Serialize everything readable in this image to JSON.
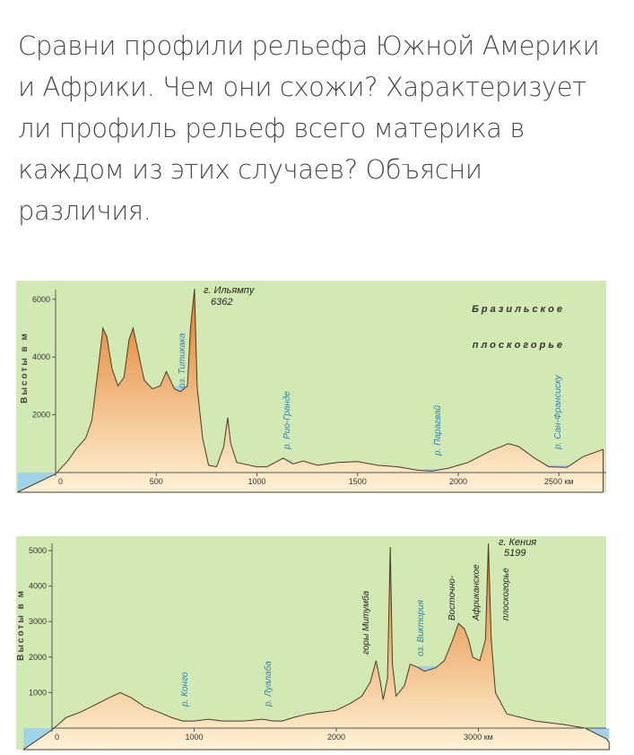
{
  "question": {
    "lines": [
      "Сравни профили рельефа Южной Америки",
      "и Африки. Чем они схожи? Характеризует",
      "ли профиль рельеф всего материка в",
      "каждом из этих случаев? Объясни",
      "различия."
    ]
  },
  "colors": {
    "panel_bg": "#d3e9b4",
    "terrain_top": "#e07a24",
    "terrain_bottom": "#fff3d6",
    "water": "#9fd3ea",
    "axis": "#555555"
  },
  "chart_data": [
    {
      "type": "area",
      "ylabel": "Высоты в м",
      "x_unit": "км",
      "xlim": [
        0,
        2720
      ],
      "ylim": [
        -800,
        6600
      ],
      "x_ticks": [
        0,
        500,
        1000,
        1500,
        2000,
        2500
      ],
      "x_tick_labels": [
        "0",
        "500",
        "1000",
        "1500",
        "2000",
        "2500 км"
      ],
      "y_ticks": [
        2000,
        4000,
        6000
      ],
      "y_tick_labels": [
        "2000",
        "4000",
        "6000"
      ],
      "profile": [
        [
          -190,
          -800
        ],
        [
          0,
          -50
        ],
        [
          60,
          400
        ],
        [
          100,
          800
        ],
        [
          150,
          1200
        ],
        [
          180,
          1800
        ],
        [
          210,
          3500
        ],
        [
          235,
          5000
        ],
        [
          255,
          4700
        ],
        [
          280,
          3600
        ],
        [
          310,
          3000
        ],
        [
          340,
          3300
        ],
        [
          365,
          4600
        ],
        [
          385,
          5000
        ],
        [
          410,
          4200
        ],
        [
          440,
          3200
        ],
        [
          480,
          2900
        ],
        [
          520,
          3000
        ],
        [
          550,
          3500
        ],
        [
          590,
          2900
        ],
        [
          620,
          2800
        ],
        [
          655,
          3000
        ],
        [
          670,
          5000
        ],
        [
          690,
          6362
        ],
        [
          703,
          3000
        ],
        [
          730,
          1200
        ],
        [
          760,
          250
        ],
        [
          800,
          200
        ],
        [
          835,
          900
        ],
        [
          855,
          1900
        ],
        [
          870,
          1000
        ],
        [
          900,
          350
        ],
        [
          1000,
          200
        ],
        [
          1050,
          200
        ],
        [
          1130,
          500
        ],
        [
          1180,
          300
        ],
        [
          1230,
          400
        ],
        [
          1300,
          250
        ],
        [
          1400,
          350
        ],
        [
          1500,
          380
        ],
        [
          1600,
          250
        ],
        [
          1700,
          200
        ],
        [
          1800,
          80
        ],
        [
          1870,
          50
        ],
        [
          1950,
          150
        ],
        [
          2050,
          350
        ],
        [
          2160,
          750
        ],
        [
          2250,
          1000
        ],
        [
          2300,
          900
        ],
        [
          2380,
          500
        ],
        [
          2450,
          200
        ],
        [
          2540,
          180
        ],
        [
          2620,
          550
        ],
        [
          2720,
          800
        ]
      ],
      "water": [
        {
          "x1": -190,
          "x2": 0,
          "level": 0
        },
        {
          "x1": 590,
          "x2": 655,
          "level": 3000
        },
        {
          "x1": 1120,
          "x2": 1175,
          "level": 450
        },
        {
          "x1": 1830,
          "x2": 1930,
          "level": 130
        },
        {
          "x1": 2420,
          "x2": 2560,
          "level": 250
        }
      ],
      "labels": {
        "peak_name": "г. Ильямпу",
        "peak_height": "6362",
        "titicaca": "оз. Титикака",
        "rio_grande": "р. Рио-Гранде",
        "paraguay": "р. Парагвай",
        "sao_francisco": "р. Сан-Франсиску",
        "plateau1": "Бразильское",
        "plateau2": "плоскогорье"
      }
    },
    {
      "type": "area",
      "ylabel": "Высоты в м",
      "x_unit": "км",
      "xlim": [
        0,
        3920
      ],
      "ylim": [
        -600,
        5500
      ],
      "x_ticks": [
        0,
        1000,
        2000,
        3000
      ],
      "x_tick_labels": [
        "0",
        "1000",
        "2000",
        "3000 км"
      ],
      "y_ticks": [
        1000,
        2000,
        3000,
        4000,
        5000
      ],
      "y_tick_labels": [
        "1000",
        "2000",
        "3000",
        "4000",
        "5000"
      ],
      "profile": [
        [
          -200,
          -600
        ],
        [
          0,
          -50
        ],
        [
          100,
          300
        ],
        [
          200,
          450
        ],
        [
          300,
          650
        ],
        [
          400,
          850
        ],
        [
          480,
          1000
        ],
        [
          560,
          850
        ],
        [
          650,
          600
        ],
        [
          750,
          450
        ],
        [
          840,
          300
        ],
        [
          920,
          200
        ],
        [
          1000,
          200
        ],
        [
          1100,
          250
        ],
        [
          1200,
          200
        ],
        [
          1350,
          200
        ],
        [
          1480,
          250
        ],
        [
          1560,
          200
        ],
        [
          1620,
          200
        ],
        [
          1700,
          300
        ],
        [
          1800,
          400
        ],
        [
          1900,
          450
        ],
        [
          2000,
          500
        ],
        [
          2100,
          700
        ],
        [
          2180,
          900
        ],
        [
          2240,
          1300
        ],
        [
          2280,
          1900
        ],
        [
          2310,
          1300
        ],
        [
          2330,
          800
        ],
        [
          2360,
          1400
        ],
        [
          2380,
          5100
        ],
        [
          2395,
          1800
        ],
        [
          2420,
          900
        ],
        [
          2480,
          1200
        ],
        [
          2520,
          1800
        ],
        [
          2580,
          1700
        ],
        [
          2620,
          1600
        ],
        [
          2700,
          1700
        ],
        [
          2760,
          1900
        ],
        [
          2820,
          2500
        ],
        [
          2860,
          2950
        ],
        [
          2900,
          2800
        ],
        [
          2930,
          2500
        ],
        [
          2960,
          2000
        ],
        [
          3010,
          1900
        ],
        [
          3050,
          2500
        ],
        [
          3070,
          5199
        ],
        [
          3090,
          2500
        ],
        [
          3120,
          1000
        ],
        [
          3200,
          400
        ],
        [
          3400,
          200
        ],
        [
          3600,
          100
        ],
        [
          3750,
          0
        ],
        [
          3900,
          -300
        ],
        [
          3920,
          -400
        ]
      ],
      "water": [
        {
          "x1": -200,
          "x2": 0,
          "level": 0
        },
        {
          "x1": 880,
          "x2": 960,
          "level": 220
        },
        {
          "x1": 1540,
          "x2": 1640,
          "level": 220
        },
        {
          "x1": 2580,
          "x2": 2740,
          "level": 1750
        },
        {
          "x1": 3750,
          "x2": 3920,
          "level": 0
        }
      ],
      "labels": {
        "peak_name": "г. Кения",
        "peak_height": "5199",
        "mitumba": "горы Митумба",
        "victoria": "оз. Виктория",
        "congo": "р. Конго",
        "lualaba": "р. Луалаба",
        "east1": "Восточно-",
        "east2": "Африканское",
        "east3": "плоскогорье"
      }
    }
  ]
}
